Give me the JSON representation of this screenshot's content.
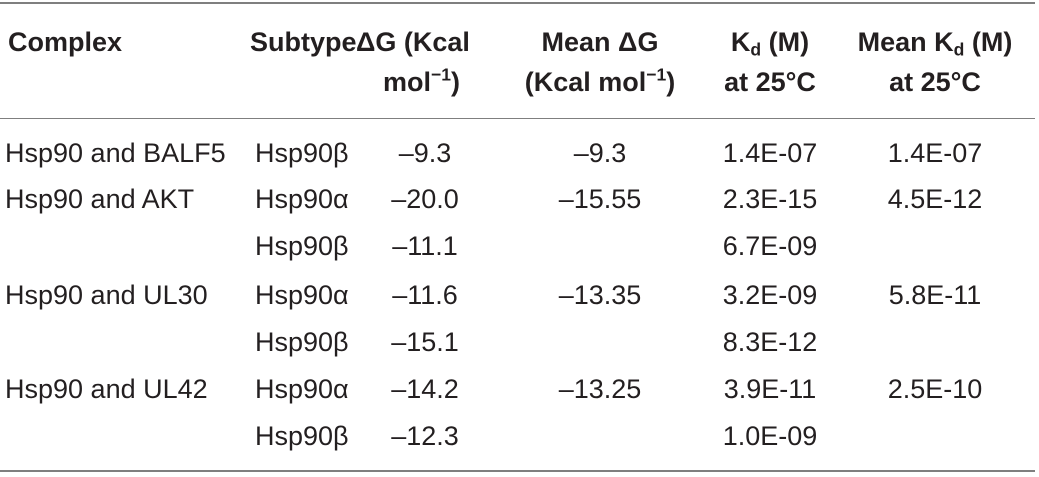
{
  "table": {
    "headers": {
      "complex": "Complex",
      "subtype": "Subtype",
      "dg": [
        "ΔG (Kcal",
        "mol",
        "−1",
        ")"
      ],
      "mean_dg": [
        "Mean ΔG",
        "(Kcal mol",
        "−1",
        ")"
      ],
      "kd": [
        "K",
        "d",
        " (M)",
        "at 25°C"
      ],
      "mean_kd": [
        "Mean K",
        "d",
        " (M)",
        "at 25°C"
      ]
    },
    "rows": [
      {
        "complex": "Hsp90 and BALF5",
        "subtype": "Hsp90β",
        "dg": "–9.3",
        "mean_dg": "–9.3",
        "kd": "1.4E-07",
        "mean_kd": "1.4E-07"
      },
      {
        "complex": "Hsp90 and AKT",
        "subtype": "Hsp90α",
        "dg": "–20.0",
        "mean_dg": "–15.55",
        "kd": "2.3E-15",
        "mean_kd": "4.5E-12"
      },
      {
        "complex": "",
        "subtype": "Hsp90β",
        "dg": "–11.1",
        "mean_dg": "",
        "kd": "6.7E-09",
        "mean_kd": ""
      },
      {
        "complex": "Hsp90 and UL30",
        "subtype": "Hsp90α",
        "dg": "–11.6",
        "mean_dg": "–13.35",
        "kd": "3.2E-09",
        "mean_kd": "5.8E-11"
      },
      {
        "complex": "",
        "subtype": "Hsp90β",
        "dg": "–15.1",
        "mean_dg": "",
        "kd": "8.3E-12",
        "mean_kd": ""
      },
      {
        "complex": "Hsp90 and UL42",
        "subtype": "Hsp90α",
        "dg": "–14.2",
        "mean_dg": "–13.25",
        "kd": "3.9E-11",
        "mean_kd": "2.5E-10"
      },
      {
        "complex": "",
        "subtype": "Hsp90β",
        "dg": "–12.3",
        "mean_dg": "",
        "kd": "1.0E-09",
        "mean_kd": ""
      }
    ]
  }
}
